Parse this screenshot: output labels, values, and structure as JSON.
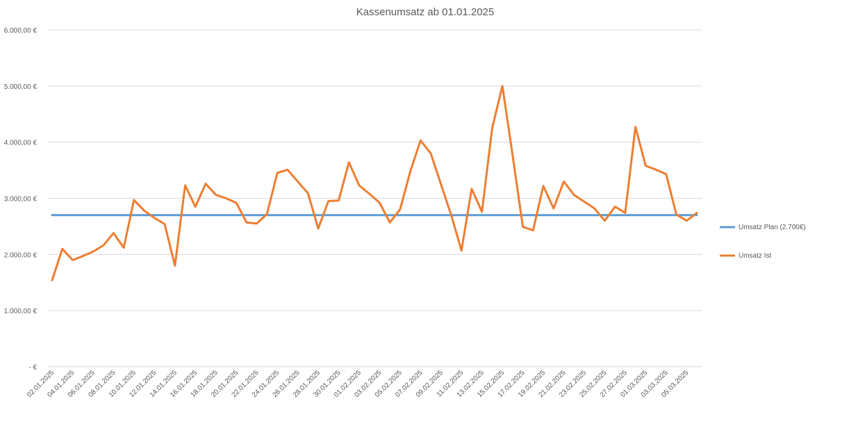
{
  "chart_data": {
    "type": "line",
    "title": "Kassenumsatz ab 01.01.2025",
    "xlabel": "",
    "ylabel": "",
    "ylim": [
      0,
      6000
    ],
    "yticks": [
      0,
      1000,
      2000,
      3000,
      4000,
      5000,
      6000
    ],
    "ytick_labels": [
      " -  €",
      "1.000,00 €",
      "2.000,00 €",
      "3.000,00 €",
      "4.000,00 €",
      "5.000,00 €",
      "6.000,00 €"
    ],
    "grid": true,
    "legend_position": "right",
    "x_labels": [
      "02.01.2025",
      "04.01.2025",
      "06.01.2025",
      "08.01.2025",
      "10.01.2025",
      "12.01.2025",
      "14.01.2025",
      "16.01.2025",
      "18.01.2025",
      "20.01.2025",
      "22.01.2025",
      "24.01.2025",
      "26.01.2025",
      "28.01.2025",
      "30.01.2025",
      "01.02.2025",
      "03.02.2025",
      "05.02.2025",
      "07.02.2025",
      "09.02.2025",
      "11.02.2025",
      "13.02.2025",
      "15.02.2025",
      "17.02.2025",
      "19.02.2025",
      "21.02.2025",
      "23.02.2025",
      "25.02.2025",
      "27.02.2025",
      "01.03.2025",
      "03.03.2025",
      "05.03.2025"
    ],
    "series": [
      {
        "name": "Umsatz Plan (2.700€)",
        "color": "#5B9BD5",
        "values": [
          2700,
          2700,
          2700,
          2700,
          2700,
          2700,
          2700,
          2700,
          2700,
          2700,
          2700,
          2700,
          2700,
          2700,
          2700,
          2700,
          2700,
          2700,
          2700,
          2700,
          2700,
          2700,
          2700,
          2700,
          2700,
          2700,
          2700,
          2700,
          2700,
          2700,
          2700,
          2700,
          2700,
          2700,
          2700,
          2700,
          2700,
          2700,
          2700,
          2700,
          2700,
          2700,
          2700,
          2700,
          2700,
          2700,
          2700,
          2700,
          2700,
          2700,
          2700,
          2700,
          2700,
          2700,
          2700,
          2700,
          2700,
          2700,
          2700,
          2700,
          2700,
          2700,
          2700,
          2700
        ]
      },
      {
        "name": "Umsatz Ist",
        "color": "#ED7D31",
        "values": [
          1540,
          2100,
          1900,
          1970,
          2050,
          2160,
          2380,
          2120,
          2970,
          2780,
          2650,
          2540,
          1800,
          3230,
          2850,
          3260,
          3060,
          3000,
          2920,
          2570,
          2550,
          2720,
          3450,
          3510,
          3300,
          3090,
          2460,
          2950,
          2960,
          3640,
          3230,
          3080,
          2920,
          2570,
          2800,
          3480,
          4030,
          3800,
          3250,
          2700,
          2070,
          3170,
          2760,
          4250,
          5000,
          3760,
          2490,
          2430,
          3220,
          2820,
          3300,
          3060,
          2940,
          2820,
          2600,
          2850,
          2740,
          4270,
          3580,
          3510,
          3430,
          2710,
          2600,
          2740
        ]
      }
    ]
  }
}
